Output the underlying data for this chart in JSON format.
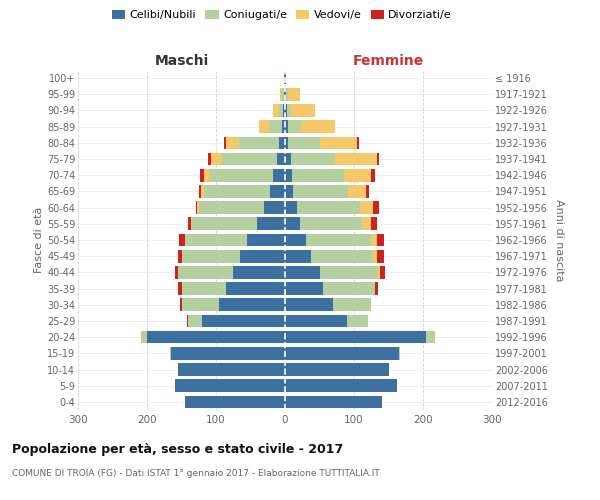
{
  "age_groups": [
    "0-4",
    "5-9",
    "10-14",
    "15-19",
    "20-24",
    "25-29",
    "30-34",
    "35-39",
    "40-44",
    "45-49",
    "50-54",
    "55-59",
    "60-64",
    "65-69",
    "70-74",
    "75-79",
    "80-84",
    "85-89",
    "90-94",
    "95-99",
    "100+"
  ],
  "birth_years": [
    "2012-2016",
    "2007-2011",
    "2002-2006",
    "1997-2001",
    "1992-1996",
    "1987-1991",
    "1982-1986",
    "1977-1981",
    "1972-1976",
    "1967-1971",
    "1962-1966",
    "1957-1961",
    "1952-1956",
    "1947-1951",
    "1942-1946",
    "1937-1941",
    "1932-1936",
    "1927-1931",
    "1922-1926",
    "1917-1921",
    "≤ 1916"
  ],
  "maschi": {
    "celibi": [
      145,
      160,
      155,
      165,
      200,
      120,
      95,
      85,
      75,
      65,
      55,
      40,
      30,
      22,
      18,
      12,
      8,
      5,
      3,
      2,
      1
    ],
    "coniugati": [
      0,
      0,
      0,
      2,
      8,
      20,
      55,
      65,
      80,
      85,
      90,
      95,
      95,
      95,
      90,
      80,
      58,
      18,
      6,
      2,
      0
    ],
    "vedovi": [
      0,
      0,
      0,
      0,
      0,
      0,
      0,
      0,
      0,
      0,
      0,
      1,
      2,
      5,
      10,
      15,
      20,
      15,
      8,
      3,
      0
    ],
    "divorziati": [
      0,
      0,
      0,
      0,
      0,
      2,
      2,
      5,
      5,
      5,
      8,
      5,
      2,
      3,
      5,
      5,
      2,
      0,
      0,
      0,
      0
    ]
  },
  "femmine": {
    "nubili": [
      140,
      162,
      150,
      165,
      205,
      90,
      70,
      55,
      50,
      38,
      30,
      22,
      18,
      12,
      10,
      8,
      5,
      5,
      3,
      2,
      1
    ],
    "coniugate": [
      0,
      0,
      0,
      2,
      12,
      30,
      55,
      75,
      85,
      90,
      95,
      90,
      90,
      80,
      75,
      65,
      45,
      18,
      5,
      2,
      0
    ],
    "vedove": [
      0,
      0,
      0,
      0,
      0,
      0,
      0,
      0,
      2,
      5,
      8,
      12,
      20,
      25,
      40,
      60,
      55,
      50,
      35,
      18,
      0
    ],
    "divorziate": [
      0,
      0,
      0,
      0,
      0,
      0,
      0,
      5,
      8,
      10,
      10,
      9,
      8,
      5,
      5,
      3,
      2,
      0,
      0,
      0,
      0
    ]
  },
  "colors": {
    "celibi": "#3d6fa0",
    "coniugati": "#b5d0a0",
    "vedovi": "#f5c96a",
    "divorziati": "#cc2222"
  },
  "xlim": 300,
  "title": "Popolazione per età, sesso e stato civile - 2017",
  "subtitle": "COMUNE DI TROIA (FG) - Dati ISTAT 1° gennaio 2017 - Elaborazione TUTTITALIA.IT",
  "header_maschi": "Maschi",
  "header_femmine": "Femmine",
  "ylabel_left": "Fasce di età",
  "ylabel_right": "Anni di nascita",
  "legend_labels": [
    "Celibi/Nubili",
    "Coniugati/e",
    "Vedovi/e",
    "Divorziati/e"
  ],
  "bg_color": "#ffffff",
  "grid_color_x": "#cccccc",
  "grid_color_y": "#dddddd",
  "text_color": "#666666"
}
